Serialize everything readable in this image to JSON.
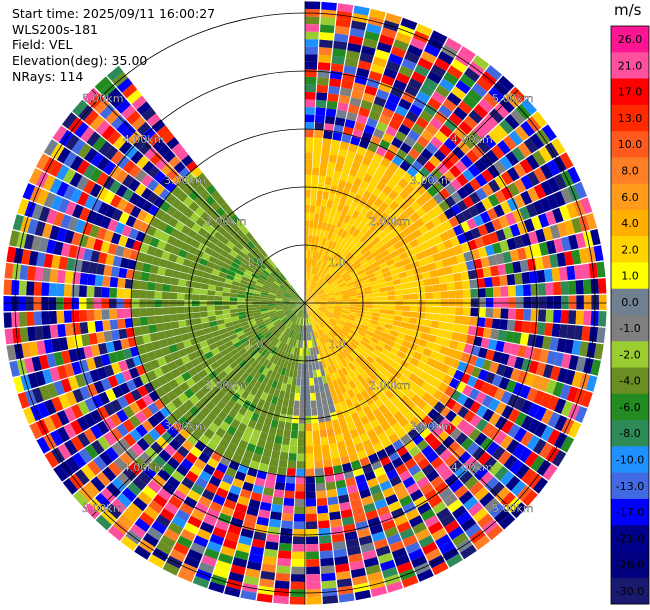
{
  "header": {
    "lines": [
      "Start time: 2025/09/11 16:00:27",
      "WLS200s-181",
      "Field: VEL",
      "Elevation(deg): 35.00",
      "NRays: 114"
    ]
  },
  "colorbar": {
    "unit": "m/s",
    "labels": [
      "26.0",
      "21.0",
      "17.0",
      "13.0",
      "10.0",
      "8.0",
      "6.0",
      "4.0",
      "2.0",
      "1.0",
      "0.0",
      "-1.0",
      "-2.0",
      "-4.0",
      "-6.0",
      "-8.0",
      "-10.0",
      "-13.0",
      "-17.0",
      "-21.0",
      "-26.0",
      "-30.0"
    ],
    "colors": [
      "#ff1493",
      "#ff4f9f",
      "#ff0000",
      "#ff2a00",
      "#ff5a1e",
      "#ff7f27",
      "#ff9a1a",
      "#ffb000",
      "#ffd400",
      "#ffff00",
      "#708090",
      "#808080",
      "#9acd32",
      "#6b8e23",
      "#228b22",
      "#2e8b57",
      "#1e90ff",
      "#4169e1",
      "#0000ff",
      "#00008b",
      "#000080",
      "#191970"
    ]
  },
  "chart_data": {
    "type": "heatmap",
    "title": "",
    "field": "VEL",
    "unit": "m/s",
    "elevation_deg": 35.0,
    "n_rays": 114,
    "range_rings": [
      "1.0",
      "2.00km",
      "3.00km",
      "4.00km",
      "5.00km"
    ],
    "gap_azimuth_deg": [
      322,
      360
    ],
    "regions": [
      {
        "description_values": "near-range negative velocities",
        "azimuth_deg": [
          185,
          320
        ],
        "range_km": [
          0,
          3.0
        ],
        "value": -3.0
      },
      {
        "description_values": "near-range positive velocities",
        "azimuth_deg": [
          0,
          165
        ],
        "range_km": [
          0,
          2.9
        ],
        "value": 4.0
      },
      {
        "description_values": "near-zero",
        "azimuth_deg": [
          165,
          200
        ],
        "range_km": [
          0,
          2.1
        ],
        "value": 0.0
      },
      {
        "description_values": "noise",
        "range_km": [
          2.9,
          5.6
        ],
        "value_range": [
          -30.0,
          26.0
        ]
      }
    ]
  }
}
